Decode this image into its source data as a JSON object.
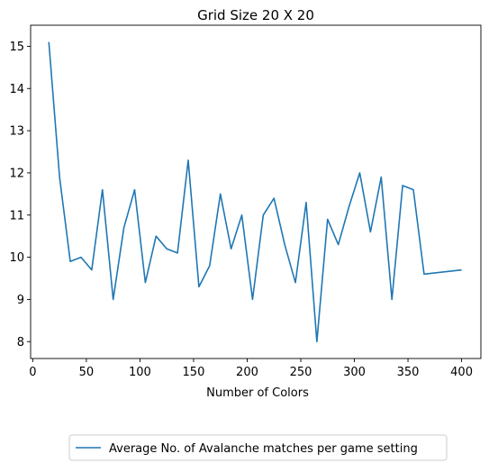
{
  "chart_data": {
    "type": "line",
    "title": "Grid Size 20 X 20",
    "xlabel": "Number of Colors",
    "ylabel": "",
    "xlim": [
      -2,
      418
    ],
    "ylim": [
      7.6,
      15.5
    ],
    "xticks": [
      0,
      50,
      100,
      150,
      200,
      250,
      300,
      350,
      400
    ],
    "yticks": [
      8,
      9,
      10,
      11,
      12,
      13,
      14,
      15
    ],
    "grid": false,
    "legend_position": "bottom-center, outside plot",
    "series": [
      {
        "name": "Average No. of Avalanche matches per game setting",
        "color": "#1f77b4",
        "x": [
          15,
          25,
          35,
          45,
          55,
          65,
          75,
          85,
          95,
          105,
          115,
          125,
          135,
          145,
          155,
          165,
          175,
          185,
          195,
          205,
          215,
          225,
          235,
          245,
          255,
          265,
          275,
          285,
          295,
          305,
          315,
          325,
          335,
          345,
          355,
          365,
          400
        ],
        "y": [
          15.1,
          11.9,
          9.9,
          10.0,
          9.7,
          11.6,
          9.0,
          10.7,
          11.6,
          9.4,
          10.5,
          10.2,
          10.1,
          12.3,
          9.3,
          9.8,
          11.5,
          10.2,
          11.0,
          9.0,
          11.0,
          11.4,
          10.3,
          9.4,
          11.3,
          8.0,
          10.9,
          10.3,
          11.2,
          12.0,
          10.6,
          11.9,
          9.0,
          11.7,
          11.6,
          9.6,
          9.7
        ]
      }
    ]
  }
}
